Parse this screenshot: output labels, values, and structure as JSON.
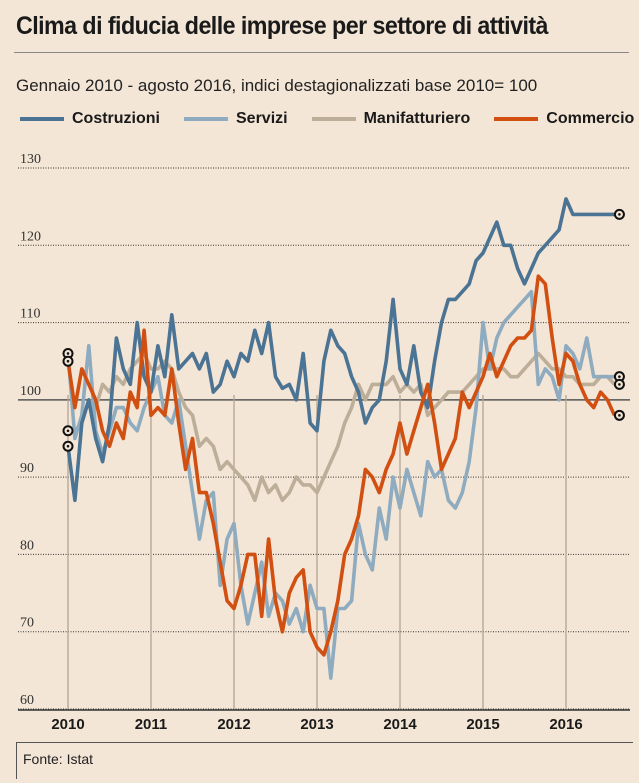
{
  "header": {
    "title": "Clima di fiducia delle imprese per settore di attività",
    "subtitle": "Gennaio 2010 - agosto 2016, indici destagionalizzati base 2010= 100"
  },
  "footer": {
    "source": "Fonte: Istat"
  },
  "chart_data": {
    "type": "line",
    "title": "Clima di fiducia delle imprese per settore di attività",
    "subtitle": "Gennaio 2010 - agosto 2016, indici destagionalizzati base 2010= 100",
    "xlabel": "",
    "ylabel": "",
    "x_frequency": "monthly",
    "x_start": "2010-01",
    "x_end": "2016-08",
    "xticks": [
      "2010",
      "2011",
      "2012",
      "2013",
      "2014",
      "2015",
      "2016"
    ],
    "yticks": [
      "60",
      "70",
      "80",
      "90",
      "100",
      "110",
      "120",
      "130"
    ],
    "ylim": [
      60,
      130
    ],
    "baseline": 100,
    "grid": true,
    "legend_position": "top",
    "series": [
      {
        "name": "Costruzioni",
        "color": "#4b7394",
        "values": [
          94,
          87,
          97,
          100,
          95,
          92,
          97,
          108,
          104,
          102,
          110,
          103,
          101,
          107,
          103,
          111,
          104,
          105,
          106,
          104,
          106,
          101,
          102,
          105,
          103,
          106,
          105,
          109,
          106,
          110,
          103,
          101.5,
          102,
          100,
          106,
          97,
          96,
          105,
          109,
          107,
          106,
          103,
          101,
          97,
          99,
          100,
          105,
          113,
          104,
          102,
          107,
          101,
          99,
          105,
          110,
          113,
          113,
          114,
          115,
          118,
          119,
          121,
          123,
          120,
          120,
          117,
          115,
          117,
          119,
          120,
          121,
          122,
          126,
          124,
          124,
          124,
          124,
          124,
          124,
          124
        ]
      },
      {
        "name": "Servizi",
        "color": "#8eabbf",
        "values": [
          106,
          95,
          98,
          107,
          96,
          93,
          96,
          99,
          99,
          97,
          96,
          99,
          101,
          103,
          98,
          97,
          100,
          94,
          88,
          82,
          87,
          88,
          76,
          82,
          84,
          76,
          71,
          75,
          79,
          72,
          75,
          74,
          71,
          73,
          70,
          76,
          73,
          73,
          64,
          73,
          73,
          74,
          84,
          80,
          78,
          86,
          82,
          90,
          86,
          91,
          88,
          85,
          92,
          90,
          91,
          87,
          86,
          88,
          92,
          99,
          110,
          104,
          108,
          110,
          111,
          112,
          113,
          114,
          102,
          104,
          103,
          100,
          107,
          106,
          104,
          108,
          103,
          103,
          103,
          103
        ]
      },
      {
        "name": "Manifatturiero",
        "color": "#bdae99",
        "values": [
          96,
          96,
          97,
          100,
          99,
          102,
          101,
          103,
          102,
          104,
          105,
          106,
          104,
          104,
          105,
          104,
          101,
          99,
          98,
          94,
          95,
          94,
          91,
          92,
          91,
          90,
          89,
          87,
          90,
          88,
          89,
          87,
          88,
          90,
          89,
          89,
          88,
          90,
          92,
          94,
          97,
          99,
          102,
          100,
          102,
          102,
          102,
          103,
          101,
          102,
          101,
          102,
          98,
          99,
          100,
          101,
          101,
          101,
          102,
          103,
          104,
          104,
          104,
          104,
          103,
          103,
          104,
          105,
          106,
          105,
          104,
          104,
          103,
          103,
          102,
          102,
          102,
          103,
          103,
          102
        ]
      },
      {
        "name": "Commercio",
        "color": "#d24f12",
        "values": [
          105,
          99,
          104,
          102,
          100,
          96,
          94,
          97,
          95,
          101,
          99,
          109,
          98,
          99,
          98,
          104,
          97,
          91,
          95,
          88,
          88,
          84,
          79,
          74,
          73,
          76,
          80,
          80,
          72,
          82,
          74,
          70,
          75,
          77,
          78,
          70,
          68,
          67,
          70,
          74,
          80,
          82,
          85,
          91,
          90,
          88,
          91,
          93,
          97,
          93,
          96,
          99,
          102,
          97,
          91,
          93,
          95,
          101,
          99,
          101,
          103,
          106,
          103,
          105,
          107,
          108,
          108,
          109,
          116,
          115,
          108,
          102,
          106,
          105,
          102,
          100,
          99,
          101,
          100,
          98
        ]
      }
    ]
  }
}
